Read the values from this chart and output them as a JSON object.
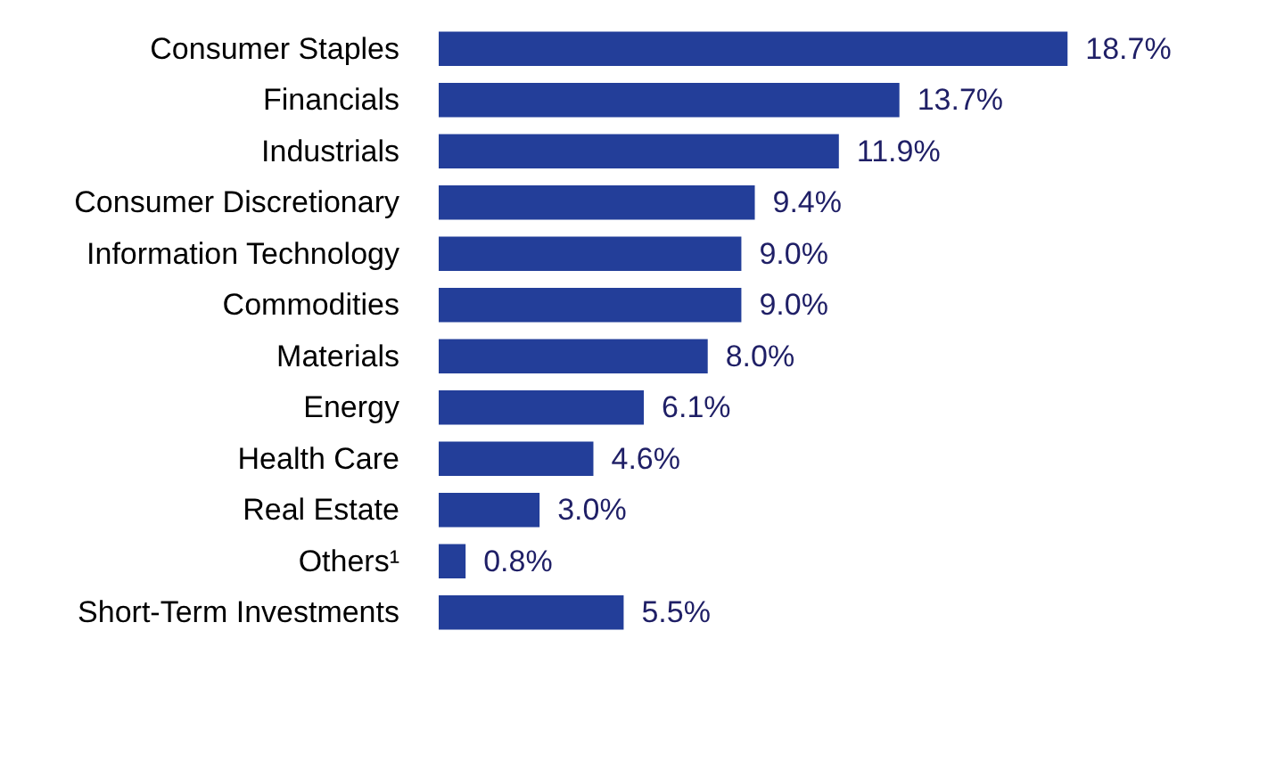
{
  "chart_data": {
    "type": "bar",
    "orientation": "horizontal",
    "categories": [
      "Consumer Staples",
      "Financials",
      "Industrials",
      "Consumer Discretionary",
      "Information Technology",
      "Commodities",
      "Materials",
      "Energy",
      "Health Care",
      "Real Estate",
      "Others¹",
      "Short-Term Investments"
    ],
    "values": [
      18.7,
      13.7,
      11.9,
      9.4,
      9.0,
      9.0,
      8.0,
      6.1,
      4.6,
      3.0,
      0.8,
      5.5
    ],
    "value_labels": [
      "18.7%",
      "13.7%",
      "11.9%",
      "9.4%",
      "9.0%",
      "9.0%",
      "8.0%",
      "6.1%",
      "4.6%",
      "3.0%",
      "0.8%",
      "5.5%"
    ],
    "color": "#233e99"
  }
}
